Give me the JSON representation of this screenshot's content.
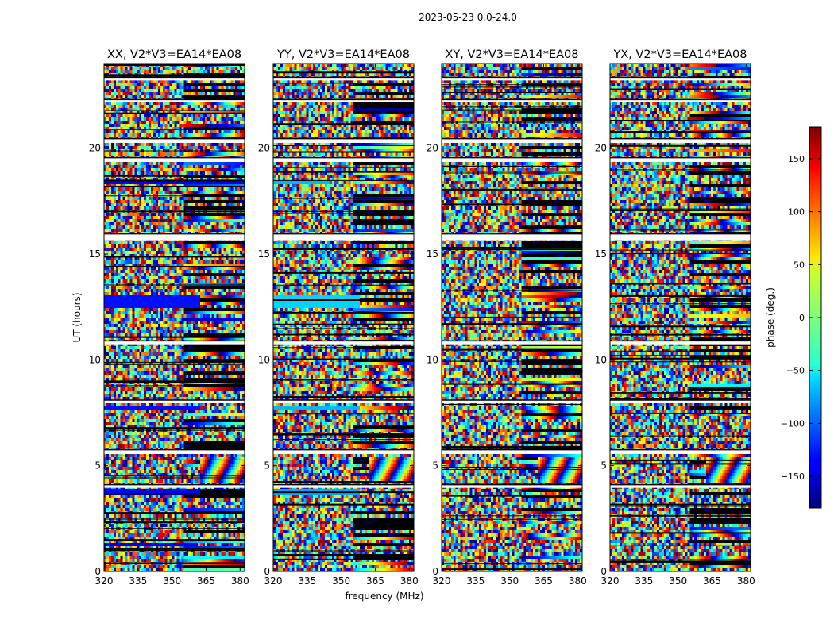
{
  "figure": {
    "title": "2023-05-23 0.0-24.0"
  },
  "chart_data": {
    "type": "heatmap",
    "title": "2023-05-23 0.0-24.0",
    "xlabel": "frequency (MHz)",
    "ylabel": "UT (hours)",
    "xlim": [
      320,
      382
    ],
    "ylim": [
      0,
      24
    ],
    "xticks": [
      320,
      335,
      350,
      365,
      380
    ],
    "yticks": [
      0,
      5,
      10,
      15,
      20
    ],
    "colorbar": {
      "label": "phase (deg.)",
      "colormap": "jet",
      "range": [
        -180,
        180
      ],
      "ticks": [
        150,
        100,
        50,
        0,
        -50,
        -100,
        -150
      ],
      "tick_labels": [
        "150",
        "100",
        "50",
        "0",
        "−50",
        "−100",
        "−150"
      ],
      "footnote": "....."
    },
    "panels": [
      {
        "name": "XX, V2*V3=EA14*EA08",
        "polarization": "XX"
      },
      {
        "name": "YY, V2*V3=EA14*EA08",
        "polarization": "YY"
      },
      {
        "name": "XY, V2*V3=EA14*EA08",
        "polarization": "XY"
      },
      {
        "name": "YX, V2*V3=EA14*EA08",
        "polarization": "YX"
      }
    ],
    "flagged_hours": [
      [
        5.55,
        5.75
      ],
      [
        7.95,
        8.1
      ],
      [
        10.7,
        10.9
      ],
      [
        15.65,
        15.95
      ],
      [
        19.35,
        19.55
      ],
      [
        20.25,
        20.45
      ],
      [
        23.2,
        23.35
      ],
      [
        22.2,
        22.3
      ],
      [
        3.95,
        4.1
      ]
    ],
    "constant_phase_blocks": [
      {
        "panel": "XX",
        "hours": [
          12.4,
          13.05
        ],
        "freq": [
          320,
          362
        ],
        "phase_deg": -130
      },
      {
        "panel": "XX",
        "hours": [
          7.65,
          7.85
        ],
        "freq": [
          320,
          362
        ],
        "phase_deg": -130
      },
      {
        "panel": "XX",
        "hours": [
          3.65,
          3.85
        ],
        "freq": [
          320,
          362
        ],
        "phase_deg": -135
      },
      {
        "panel": "XX",
        "hours": [
          18.35,
          18.5
        ],
        "freq": [
          320,
          382
        ],
        "phase_deg": -140
      },
      {
        "panel": "XX",
        "hours": [
          1.2,
          1.4
        ],
        "freq": [
          320,
          360
        ],
        "phase_deg": -140
      },
      {
        "panel": "YY",
        "hours": [
          12.4,
          13.05
        ],
        "freq": [
          320,
          358
        ],
        "phase_deg": -60
      },
      {
        "panel": "YY",
        "hours": [
          7.65,
          7.85
        ],
        "freq": [
          320,
          358
        ],
        "phase_deg": -70
      },
      {
        "panel": "YY",
        "hours": [
          3.65,
          3.85
        ],
        "freq": [
          320,
          358
        ],
        "phase_deg": -75
      },
      {
        "panel": "YY",
        "hours": [
          18.35,
          18.5
        ],
        "freq": [
          320,
          345
        ],
        "phase_deg": -70
      }
    ]
  }
}
